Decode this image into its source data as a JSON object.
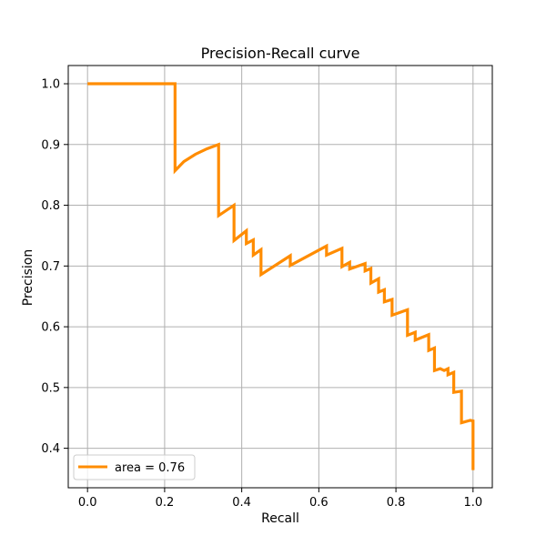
{
  "chart_data": {
    "type": "line",
    "title": "Precision-Recall curve",
    "xlabel": "Recall",
    "ylabel": "Precision",
    "xlim": [
      -0.05,
      1.05
    ],
    "ylim": [
      0.335,
      1.03
    ],
    "xticks": [
      0.0,
      0.2,
      0.4,
      0.6,
      0.8,
      1.0
    ],
    "xtick_labels": [
      "0.0",
      "0.2",
      "0.4",
      "0.6",
      "0.8",
      "1.0"
    ],
    "yticks": [
      0.4,
      0.5,
      0.6,
      0.7,
      0.8,
      0.9,
      1.0
    ],
    "ytick_labels": [
      "0.4",
      "0.5",
      "0.6",
      "0.7",
      "0.8",
      "0.9",
      "1.0"
    ],
    "grid": true,
    "legend_position": "lower-left",
    "series": [
      {
        "name": "area = 0.76",
        "color": "#ff8c00",
        "points": [
          [
            0.0,
            1.0
          ],
          [
            0.227,
            1.0
          ],
          [
            0.227,
            0.857
          ],
          [
            0.25,
            0.872
          ],
          [
            0.28,
            0.884
          ],
          [
            0.31,
            0.893
          ],
          [
            0.34,
            0.9
          ],
          [
            0.34,
            0.783
          ],
          [
            0.38,
            0.8
          ],
          [
            0.38,
            0.742
          ],
          [
            0.412,
            0.758
          ],
          [
            0.412,
            0.737
          ],
          [
            0.43,
            0.743
          ],
          [
            0.43,
            0.718
          ],
          [
            0.45,
            0.727
          ],
          [
            0.45,
            0.686
          ],
          [
            0.526,
            0.717
          ],
          [
            0.526,
            0.701
          ],
          [
            0.62,
            0.733
          ],
          [
            0.62,
            0.718
          ],
          [
            0.66,
            0.729
          ],
          [
            0.66,
            0.699
          ],
          [
            0.68,
            0.706
          ],
          [
            0.68,
            0.695
          ],
          [
            0.72,
            0.704
          ],
          [
            0.72,
            0.692
          ],
          [
            0.735,
            0.696
          ],
          [
            0.735,
            0.672
          ],
          [
            0.755,
            0.679
          ],
          [
            0.755,
            0.657
          ],
          [
            0.77,
            0.661
          ],
          [
            0.77,
            0.641
          ],
          [
            0.79,
            0.645
          ],
          [
            0.79,
            0.619
          ],
          [
            0.83,
            0.628
          ],
          [
            0.83,
            0.586
          ],
          [
            0.85,
            0.591
          ],
          [
            0.85,
            0.578
          ],
          [
            0.885,
            0.587
          ],
          [
            0.885,
            0.561
          ],
          [
            0.9,
            0.565
          ],
          [
            0.9,
            0.528
          ],
          [
            0.915,
            0.531
          ],
          [
            0.925,
            0.528
          ],
          [
            0.935,
            0.531
          ],
          [
            0.935,
            0.521
          ],
          [
            0.95,
            0.525
          ],
          [
            0.95,
            0.492
          ],
          [
            0.97,
            0.494
          ],
          [
            0.97,
            0.442
          ],
          [
            0.993,
            0.446
          ],
          [
            1.0,
            0.445
          ],
          [
            1.0,
            0.364
          ]
        ]
      }
    ]
  }
}
